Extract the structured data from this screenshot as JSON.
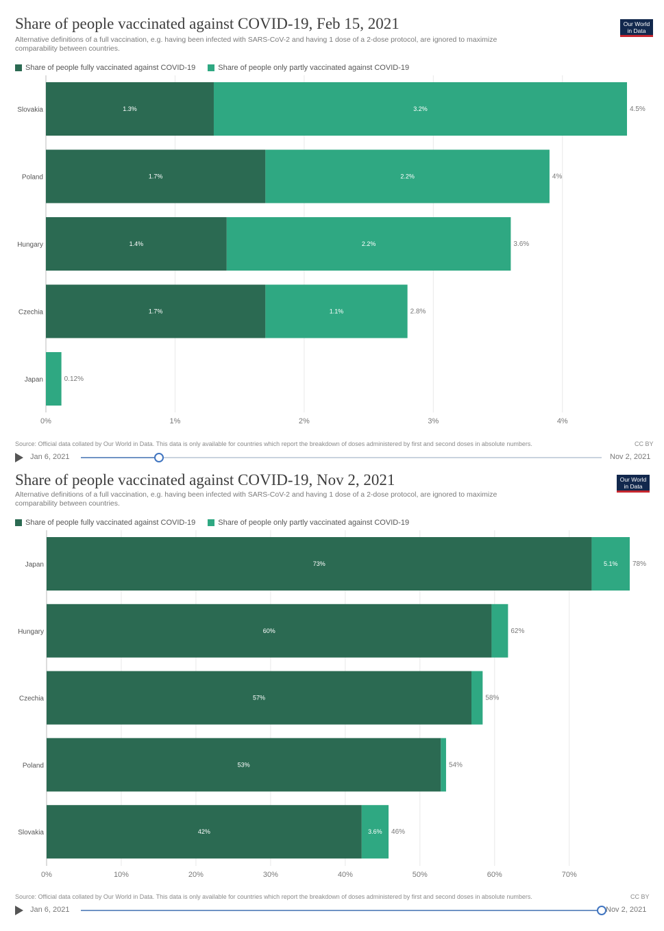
{
  "colors": {
    "full": "#2b6a52",
    "partial": "#2fa882",
    "grid": "#e8e8e8",
    "logo_bg": "#12284d",
    "logo_accent": "#c6272f"
  },
  "logo": {
    "line1": "Our World",
    "line2": "in Data"
  },
  "chart_data": [
    {
      "type": "bar",
      "orientation": "horizontal",
      "stacked": true,
      "title": "Share of people vaccinated against COVID-19, Feb 15, 2021",
      "subtitle_lines": [
        "Alternative definitions of a full vaccination, e.g. having been infected with SARS-CoV-2 and having 1 dose of a 2-dose protocol, are ignored to maximize",
        "comparability between countries."
      ],
      "categories": [
        "Slovakia",
        "Poland",
        "Hungary",
        "Czechia",
        "Japan"
      ],
      "series": [
        {
          "name": "Share of people fully vaccinated against COVID-19",
          "values": [
            1.3,
            1.7,
            1.4,
            1.7,
            0
          ],
          "labels": [
            "1.3%",
            "1.7%",
            "1.4%",
            "1.7%",
            ""
          ]
        },
        {
          "name": "Share of people only partly vaccinated against COVID-19",
          "values": [
            3.2,
            2.2,
            2.2,
            1.1,
            0.12
          ],
          "labels": [
            "3.2%",
            "2.2%",
            "2.2%",
            "1.1%",
            ""
          ]
        }
      ],
      "totals": [
        "4.5%",
        "4%",
        "3.6%",
        "2.8%",
        "0.12%"
      ],
      "xlim": [
        0,
        4.5
      ],
      "ticks": [
        0,
        1,
        2,
        3,
        4
      ],
      "tick_labels": [
        "0%",
        "1%",
        "2%",
        "3%",
        "4%"
      ],
      "grid": true,
      "legend_position": "top-left",
      "source": "Source: Official data collated by Our World in Data. This data is only available for countries which report the breakdown of doses administered by first and second doses in absolute numbers.",
      "license": "CC BY",
      "timeline": {
        "start": "Jan 6, 2021",
        "end": "Nov 2, 2021",
        "position": 0.15
      }
    },
    {
      "type": "bar",
      "orientation": "horizontal",
      "stacked": true,
      "title": "Share of people vaccinated against COVID-19, Nov 2, 2021",
      "subtitle_lines": [
        "Alternative definitions of a full vaccination, e.g. having been infected with SARS-CoV-2 and having 1 dose of a 2-dose protocol, are ignored to maximize",
        "comparability between countries."
      ],
      "categories": [
        "Japan",
        "Hungary",
        "Czechia",
        "Poland",
        "Slovakia"
      ],
      "series": [
        {
          "name": "Share of people fully vaccinated against COVID-19",
          "values": [
            73,
            59.6,
            56.9,
            52.8,
            42.2
          ],
          "labels": [
            "73%",
            "60%",
            "57%",
            "53%",
            "42%"
          ]
        },
        {
          "name": "Share of people only partly vaccinated against COVID-19",
          "values": [
            5.1,
            2.2,
            1.5,
            0.7,
            3.6
          ],
          "labels": [
            "5.1%",
            "",
            "",
            "",
            "3.6%"
          ]
        }
      ],
      "totals": [
        "78%",
        "62%",
        "58%",
        "54%",
        "46%"
      ],
      "xlim": [
        0,
        78.1
      ],
      "ticks": [
        0,
        10,
        20,
        30,
        40,
        50,
        60,
        70
      ],
      "tick_labels": [
        "0%",
        "10%",
        "20%",
        "30%",
        "40%",
        "50%",
        "60%",
        "70%"
      ],
      "grid": true,
      "legend_position": "top-left",
      "source": "Source: Official data collated by Our World in Data. This data is only available for countries which report the breakdown of doses administered by first and second doses in absolute numbers.",
      "license": "CC BY",
      "timeline": {
        "start": "Jan 6, 2021",
        "end": "Nov 2, 2021",
        "position": 1.0
      }
    }
  ]
}
